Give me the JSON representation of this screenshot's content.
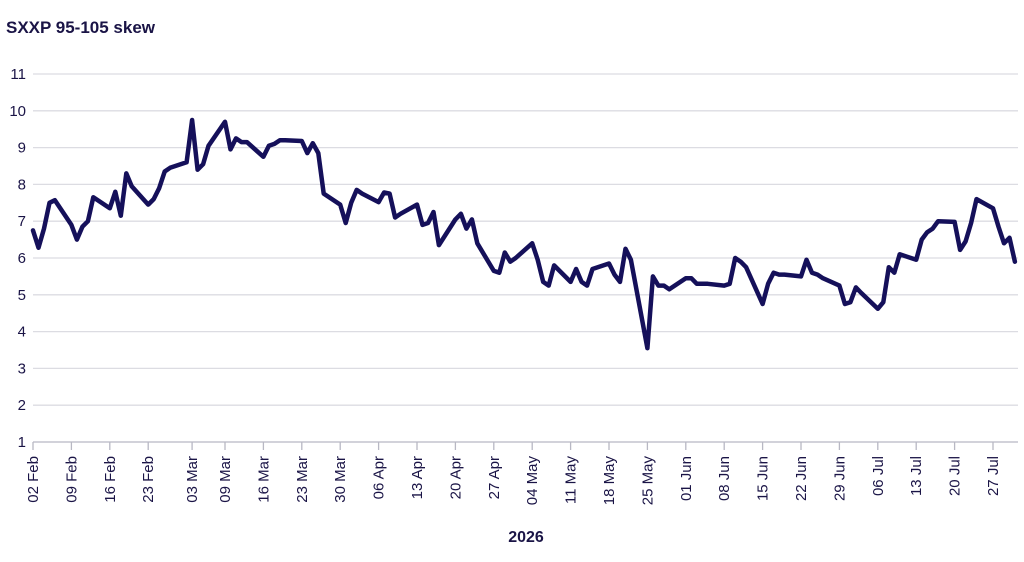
{
  "chart_data": {
    "type": "line",
    "title": "SXXP 95-105 skew",
    "xlabel": "2026",
    "ylabel": "",
    "ylim": [
      1,
      11
    ],
    "yticks": [
      1,
      2,
      3,
      4,
      5,
      6,
      7,
      8,
      9,
      10,
      11
    ],
    "x_ticks": [
      "02 Feb",
      "09 Feb",
      "16 Feb",
      "23 Feb",
      "03 Mar",
      "09 Mar",
      "16 Mar",
      "23 Mar",
      "30 Mar",
      "06 Apr",
      "13 Apr",
      "20 Apr",
      "27 Apr",
      "04 May",
      "11 May",
      "18 May",
      "25 May",
      "01 Jun",
      "08 Jun",
      "15 Jun",
      "22 Jun",
      "29 Jun",
      "06 Jul",
      "13 Jul",
      "20 Jul",
      "27 Jul"
    ],
    "grid": true,
    "color": "#15105a",
    "series": [
      {
        "x": [
          "02 Feb",
          "03 Feb",
          "04 Feb",
          "05 Feb",
          "06 Feb",
          "09 Feb",
          "10 Feb",
          "11 Feb",
          "12 Feb",
          "13 Feb",
          "16 Feb",
          "17 Feb",
          "18 Feb",
          "19 Feb",
          "20 Feb",
          "23 Feb",
          "24 Feb",
          "25 Feb",
          "26 Feb",
          "27 Feb",
          "02 Mar",
          "03 Mar",
          "04 Mar",
          "05 Mar",
          "06 Mar",
          "09 Mar",
          "10 Mar",
          "11 Mar",
          "12 Mar",
          "13 Mar",
          "16 Mar",
          "17 Mar",
          "18 Mar",
          "19 Mar",
          "20 Mar",
          "23 Mar",
          "24 Mar",
          "25 Mar",
          "26 Mar",
          "27 Mar",
          "30 Mar",
          "31 Mar",
          "01 Apr",
          "02 Apr",
          "03 Apr",
          "06 Apr",
          "07 Apr",
          "08 Apr",
          "09 Apr",
          "10 Apr",
          "13 Apr",
          "14 Apr",
          "15 Apr",
          "16 Apr",
          "17 Apr",
          "20 Apr",
          "21 Apr",
          "22 Apr",
          "23 Apr",
          "24 Apr",
          "27 Apr",
          "28 Apr",
          "29 Apr",
          "30 Apr",
          "01 May",
          "04 May",
          "05 May",
          "06 May",
          "07 May",
          "08 May",
          "11 May",
          "12 May",
          "13 May",
          "14 May",
          "15 May",
          "18 May",
          "19 May",
          "20 May",
          "21 May",
          "22 May",
          "25 May",
          "26 May",
          "27 May",
          "28 May",
          "29 May",
          "01 Jun",
          "02 Jun",
          "03 Jun",
          "04 Jun",
          "05 Jun",
          "08 Jun",
          "09 Jun",
          "10 Jun",
          "11 Jun",
          "12 Jun",
          "15 Jun",
          "16 Jun",
          "17 Jun",
          "18 Jun",
          "19 Jun",
          "22 Jun",
          "23 Jun",
          "24 Jun",
          "25 Jun",
          "26 Jun",
          "29 Jun",
          "30 Jun",
          "01 Jul",
          "02 Jul",
          "03 Jul",
          "06 Jul",
          "07 Jul",
          "08 Jul",
          "09 Jul",
          "10 Jul",
          "13 Jul",
          "14 Jul",
          "15 Jul",
          "16 Jul",
          "17 Jul",
          "20 Jul",
          "21 Jul",
          "22 Jul",
          "23 Jul",
          "24 Jul",
          "27 Jul",
          "28 Jul",
          "29 Jul",
          "30 Jul",
          "31 Jul"
        ],
        "values": [
          6.75,
          6.28,
          6.8,
          7.5,
          7.57,
          6.9,
          6.5,
          6.85,
          7.0,
          7.65,
          7.35,
          7.8,
          7.15,
          8.3,
          7.95,
          7.45,
          7.6,
          7.9,
          8.35,
          8.45,
          8.6,
          9.75,
          8.4,
          8.55,
          9.05,
          9.7,
          8.95,
          9.25,
          9.15,
          9.15,
          8.75,
          9.05,
          9.1,
          9.2,
          9.2,
          9.18,
          8.85,
          9.12,
          8.85,
          7.75,
          7.45,
          6.95,
          7.5,
          7.85,
          7.75,
          7.52,
          7.78,
          7.75,
          7.1,
          7.2,
          7.45,
          6.9,
          6.95,
          7.25,
          6.35,
          7.05,
          7.2,
          6.8,
          7.05,
          6.4,
          5.65,
          5.6,
          6.15,
          5.9,
          6.0,
          6.4,
          5.95,
          5.35,
          5.25,
          5.8,
          5.35,
          5.7,
          5.35,
          5.25,
          5.7,
          5.85,
          5.55,
          5.35,
          6.25,
          5.95,
          3.55,
          5.5,
          5.25,
          5.25,
          5.15,
          5.45,
          5.45,
          5.3,
          5.3,
          5.3,
          5.25,
          5.3,
          6.0,
          5.9,
          5.75,
          4.75,
          5.3,
          5.6,
          5.55,
          5.55,
          5.5,
          5.95,
          5.6,
          5.55,
          5.45,
          5.25,
          4.75,
          4.8,
          5.2,
          5.05,
          4.62,
          4.8,
          5.75,
          5.6,
          6.1,
          5.95,
          6.5,
          6.7,
          6.8,
          7.0,
          6.98,
          6.22,
          6.45,
          6.95,
          7.6,
          7.35,
          6.85,
          6.4,
          6.55,
          5.9
        ]
      }
    ]
  }
}
